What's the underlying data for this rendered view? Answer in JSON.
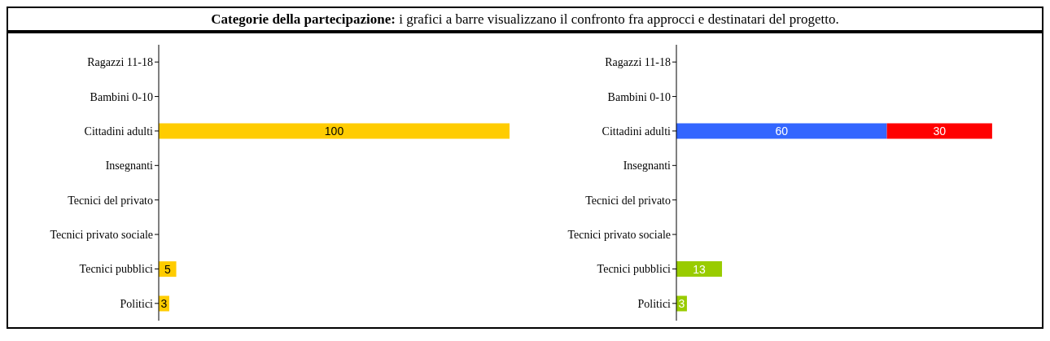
{
  "chart_data": [
    {
      "type": "bar",
      "title": "Categorie della partecipazione: i grafici a barre visualizzano il confronto fra approcci e destinatari del progetto.",
      "orientation": "horizontal",
      "tick_labels": "y",
      "data_labels": true,
      "legend": false,
      "grid": false,
      "categories": [
        "Ragazzi 11-18",
        "Bambini 0-10",
        "Cittadini adulti",
        "Insegnanti",
        "Tecnici del privato",
        "Tecnici privato sociale",
        "Tecnici pubblici",
        "Politici"
      ],
      "series": [
        {
          "color": "#ffcc00",
          "values": [
            null,
            null,
            100,
            null,
            null,
            null,
            5,
            3
          ]
        }
      ]
    },
    {
      "type": "bar",
      "orientation": "horizontal",
      "tick_labels": "y",
      "stacked": true,
      "data_labels": true,
      "legend": false,
      "grid": false,
      "categories": [
        "Ragazzi 11-18",
        "Bambini 0-10",
        "Cittadini adulti",
        "Insegnanti",
        "Tecnici del privato",
        "Tecnici privato sociale",
        "Tecnici pubblici",
        "Politici"
      ],
      "series": [
        {
          "color": "#3366ff",
          "values": [
            null,
            null,
            60,
            null,
            null,
            null,
            null,
            null
          ]
        },
        {
          "color": "#ff0000",
          "values": [
            null,
            null,
            30,
            null,
            null,
            null,
            null,
            null
          ]
        },
        {
          "color": "#99cc00",
          "values": [
            null,
            null,
            null,
            null,
            null,
            null,
            13,
            3
          ]
        }
      ]
    }
  ]
}
